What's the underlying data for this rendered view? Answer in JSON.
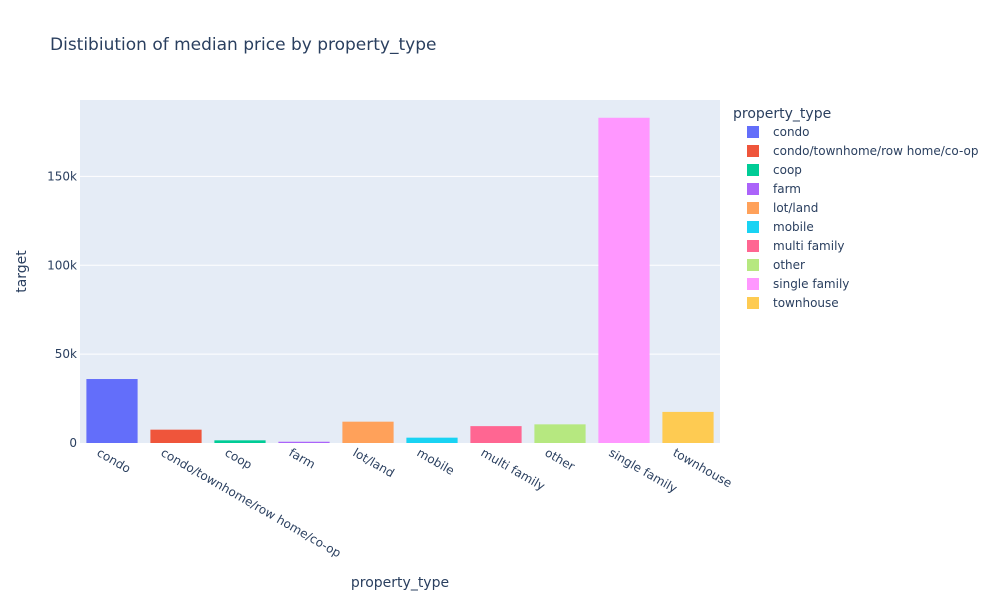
{
  "chart_data": {
    "type": "bar",
    "title": "Distibiution of median price by property_type",
    "xlabel": "property_type",
    "ylabel": "target",
    "categories": [
      "condo",
      "condo/townhome/row home/co-op",
      "coop",
      "farm",
      "lot/land",
      "mobile",
      "multi family",
      "other",
      "single family",
      "townhouse"
    ],
    "values": [
      36000,
      7500,
      1500,
      700,
      12000,
      3000,
      9500,
      10500,
      183000,
      17500
    ],
    "colors": [
      "#636efa",
      "#EF553B",
      "#00cc96",
      "#ab63fa",
      "#FFA15A",
      "#19d3f3",
      "#FF6692",
      "#B6E880",
      "#FF97FF",
      "#FECB52"
    ],
    "ylim": [
      0,
      193000
    ],
    "yticks": [
      0,
      50000,
      100000,
      150000
    ],
    "ytick_labels": [
      "0",
      "50k",
      "100k",
      "150k"
    ],
    "grid": true,
    "legend": {
      "title": "property_type",
      "position": "right",
      "entries": [
        "condo",
        "condo/townhome/row home/co-op",
        "coop",
        "farm",
        "lot/land",
        "mobile",
        "multi family",
        "other",
        "single family",
        "townhouse"
      ]
    },
    "plot_background": "#E5ECF6"
  }
}
